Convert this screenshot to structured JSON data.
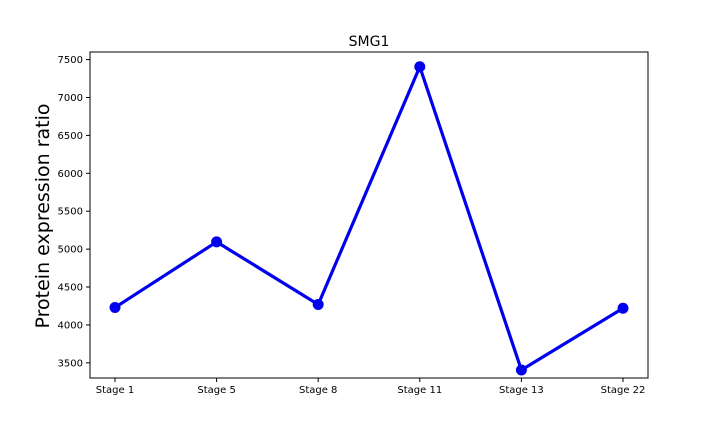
{
  "chart_data": {
    "type": "line",
    "title": "SMG1",
    "xlabel": "",
    "ylabel": "Protein expression ratio",
    "categories": [
      "Stage 1",
      "Stage 5",
      "Stage 8",
      "Stage 11",
      "Stage 13",
      "Stage 22"
    ],
    "series": [
      {
        "values": [
          4230,
          5095,
          4270,
          7405,
          3405,
          4220
        ]
      }
    ],
    "ylim": [
      3300,
      7600
    ],
    "yticks": [
      3500,
      4000,
      4500,
      5000,
      5500,
      6000,
      6500,
      7000,
      7500
    ],
    "grid": false,
    "legend": "none",
    "colors": {
      "line": "#0000ee",
      "axis": "#000000"
    }
  }
}
